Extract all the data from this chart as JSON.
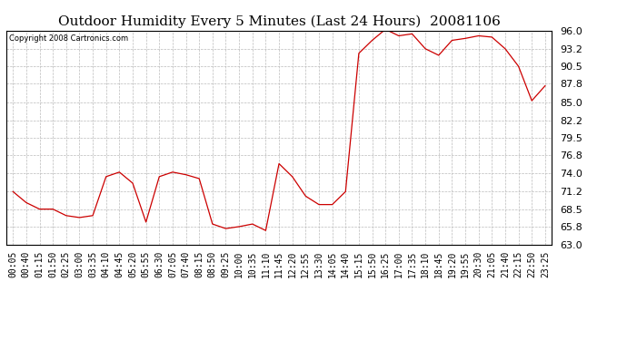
{
  "title": "Outdoor Humidity Every 5 Minutes (Last 24 Hours)  20081106",
  "copyright": "Copyright 2008 Cartronics.com",
  "line_color": "#cc0000",
  "background_color": "#ffffff",
  "grid_color": "#bbbbbb",
  "ylim": [
    63.0,
    96.0
  ],
  "yticks": [
    63.0,
    65.8,
    68.5,
    71.2,
    74.0,
    76.8,
    79.5,
    82.2,
    85.0,
    87.8,
    90.5,
    93.2,
    96.0
  ],
  "x_labels": [
    "00:05",
    "00:40",
    "01:15",
    "01:50",
    "02:25",
    "03:00",
    "03:35",
    "04:10",
    "04:45",
    "05:20",
    "05:55",
    "06:30",
    "07:05",
    "07:40",
    "08:15",
    "08:50",
    "09:25",
    "10:00",
    "10:35",
    "11:10",
    "11:45",
    "12:20",
    "12:55",
    "13:30",
    "14:05",
    "14:40",
    "15:15",
    "15:50",
    "16:25",
    "17:00",
    "17:35",
    "18:10",
    "18:45",
    "19:20",
    "19:55",
    "20:30",
    "21:05",
    "21:40",
    "22:15",
    "22:50",
    "23:25"
  ],
  "y_values": [
    71.2,
    69.5,
    68.5,
    68.5,
    67.5,
    67.2,
    67.5,
    73.5,
    74.2,
    72.5,
    66.5,
    73.5,
    74.2,
    73.8,
    73.2,
    66.2,
    65.5,
    65.8,
    66.2,
    65.2,
    75.5,
    73.5,
    70.5,
    69.2,
    69.2,
    71.2,
    92.5,
    94.5,
    96.2,
    95.2,
    95.5,
    93.2,
    92.2,
    94.5,
    94.8,
    95.2,
    95.0,
    93.2,
    90.5,
    85.2,
    87.5
  ],
  "title_fontsize": 11,
  "tick_fontsize": 7,
  "ytick_fontsize": 8,
  "copyright_fontsize": 6
}
